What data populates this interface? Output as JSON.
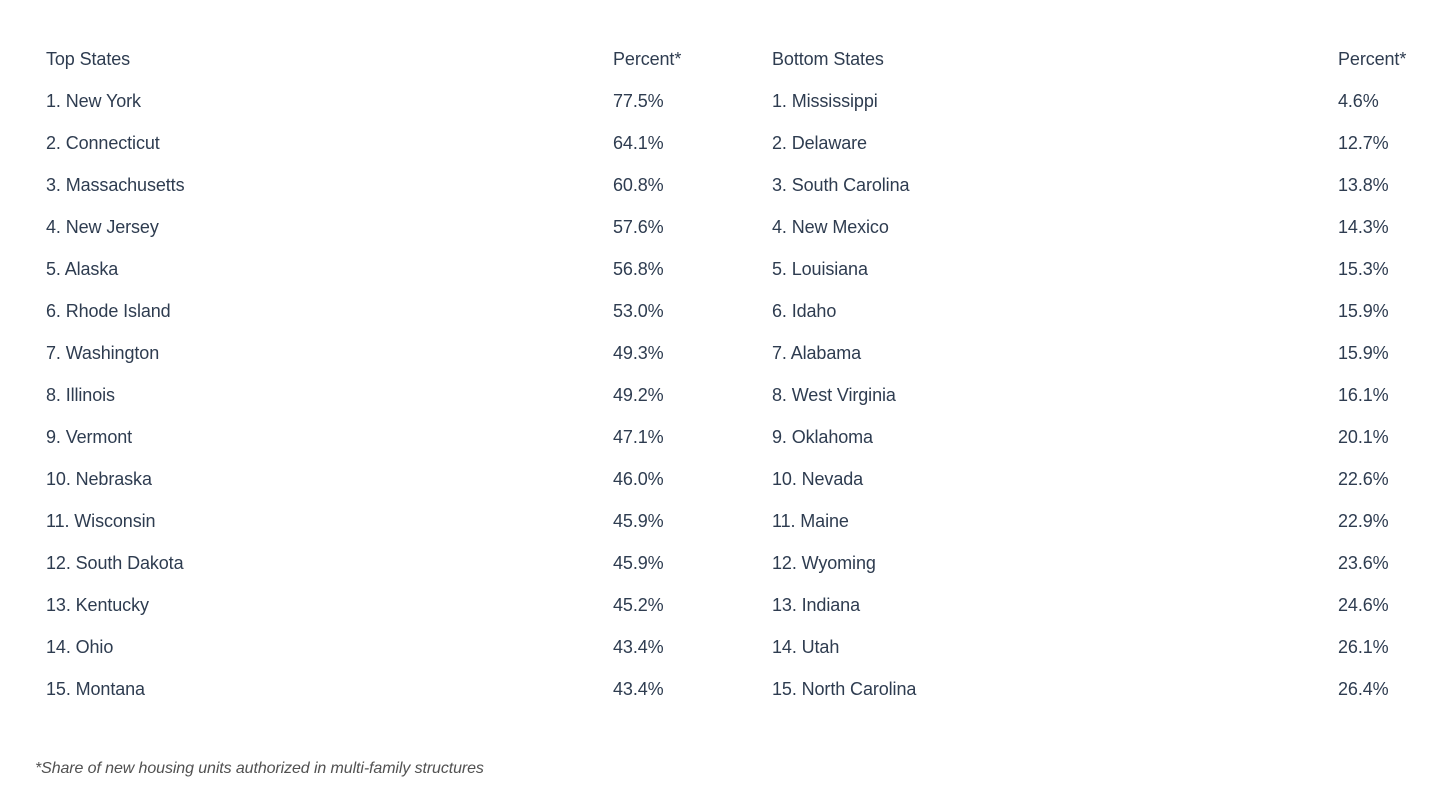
{
  "colors": {
    "background": "#ffffff",
    "text": "#2e3c50",
    "footnote_text": "#515151"
  },
  "tables": [
    {
      "id": "top",
      "header": {
        "label": "Top States",
        "percent": "Percent*"
      },
      "rows": [
        {
          "name": "1. New York",
          "percent": "77.5%"
        },
        {
          "name": "2. Connecticut",
          "percent": "64.1%"
        },
        {
          "name": "3. Massachusetts",
          "percent": "60.8%"
        },
        {
          "name": "4. New Jersey",
          "percent": "57.6%"
        },
        {
          "name": "5. Alaska",
          "percent": "56.8%"
        },
        {
          "name": "6. Rhode Island",
          "percent": "53.0%"
        },
        {
          "name": "7. Washington",
          "percent": "49.3%"
        },
        {
          "name": "8. Illinois",
          "percent": "49.2%"
        },
        {
          "name": "9. Vermont",
          "percent": "47.1%"
        },
        {
          "name": "10. Nebraska",
          "percent": "46.0%"
        },
        {
          "name": "11. Wisconsin",
          "percent": "45.9%"
        },
        {
          "name": "12. South Dakota",
          "percent": "45.9%"
        },
        {
          "name": "13. Kentucky",
          "percent": "45.2%"
        },
        {
          "name": "14. Ohio",
          "percent": "43.4%"
        },
        {
          "name": "15. Montana",
          "percent": "43.4%"
        }
      ]
    },
    {
      "id": "bottom",
      "header": {
        "label": "Bottom States",
        "percent": "Percent*"
      },
      "rows": [
        {
          "name": "1. Mississippi",
          "percent": "4.6%"
        },
        {
          "name": "2. Delaware",
          "percent": "12.7%"
        },
        {
          "name": "3. South Carolina",
          "percent": "13.8%"
        },
        {
          "name": "4. New Mexico",
          "percent": "14.3%"
        },
        {
          "name": "5. Louisiana",
          "percent": "15.3%"
        },
        {
          "name": "6. Idaho",
          "percent": "15.9%"
        },
        {
          "name": "7. Alabama",
          "percent": "15.9%"
        },
        {
          "name": "8. West Virginia",
          "percent": "16.1%"
        },
        {
          "name": "9. Oklahoma",
          "percent": "20.1%"
        },
        {
          "name": "10. Nevada",
          "percent": "22.6%"
        },
        {
          "name": "11. Maine",
          "percent": "22.9%"
        },
        {
          "name": "12. Wyoming",
          "percent": "23.6%"
        },
        {
          "name": "13. Indiana",
          "percent": "24.6%"
        },
        {
          "name": "14. Utah",
          "percent": "26.1%"
        },
        {
          "name": "15. North Carolina",
          "percent": "26.4%"
        }
      ]
    }
  ],
  "footnote": "*Share of new housing units authorized in multi-family structures",
  "chart_data": {
    "type": "table",
    "tables": [
      {
        "title": "Top States",
        "value_label": "Percent*",
        "categories": [
          "New York",
          "Connecticut",
          "Massachusetts",
          "New Jersey",
          "Alaska",
          "Rhode Island",
          "Washington",
          "Illinois",
          "Vermont",
          "Nebraska",
          "Wisconsin",
          "South Dakota",
          "Kentucky",
          "Ohio",
          "Montana"
        ],
        "values": [
          77.5,
          64.1,
          60.8,
          57.6,
          56.8,
          53.0,
          49.3,
          49.2,
          47.1,
          46.0,
          45.9,
          45.9,
          45.2,
          43.4,
          43.4
        ]
      },
      {
        "title": "Bottom States",
        "value_label": "Percent*",
        "categories": [
          "Mississippi",
          "Delaware",
          "South Carolina",
          "New Mexico",
          "Louisiana",
          "Idaho",
          "Alabama",
          "West Virginia",
          "Oklahoma",
          "Nevada",
          "Maine",
          "Wyoming",
          "Indiana",
          "Utah",
          "North Carolina"
        ],
        "values": [
          4.6,
          12.7,
          13.8,
          14.3,
          15.3,
          15.9,
          15.9,
          16.1,
          20.1,
          22.6,
          22.9,
          23.6,
          24.6,
          26.1,
          26.4
        ]
      }
    ],
    "footnote": "*Share of new housing units authorized in multi-family structures"
  }
}
